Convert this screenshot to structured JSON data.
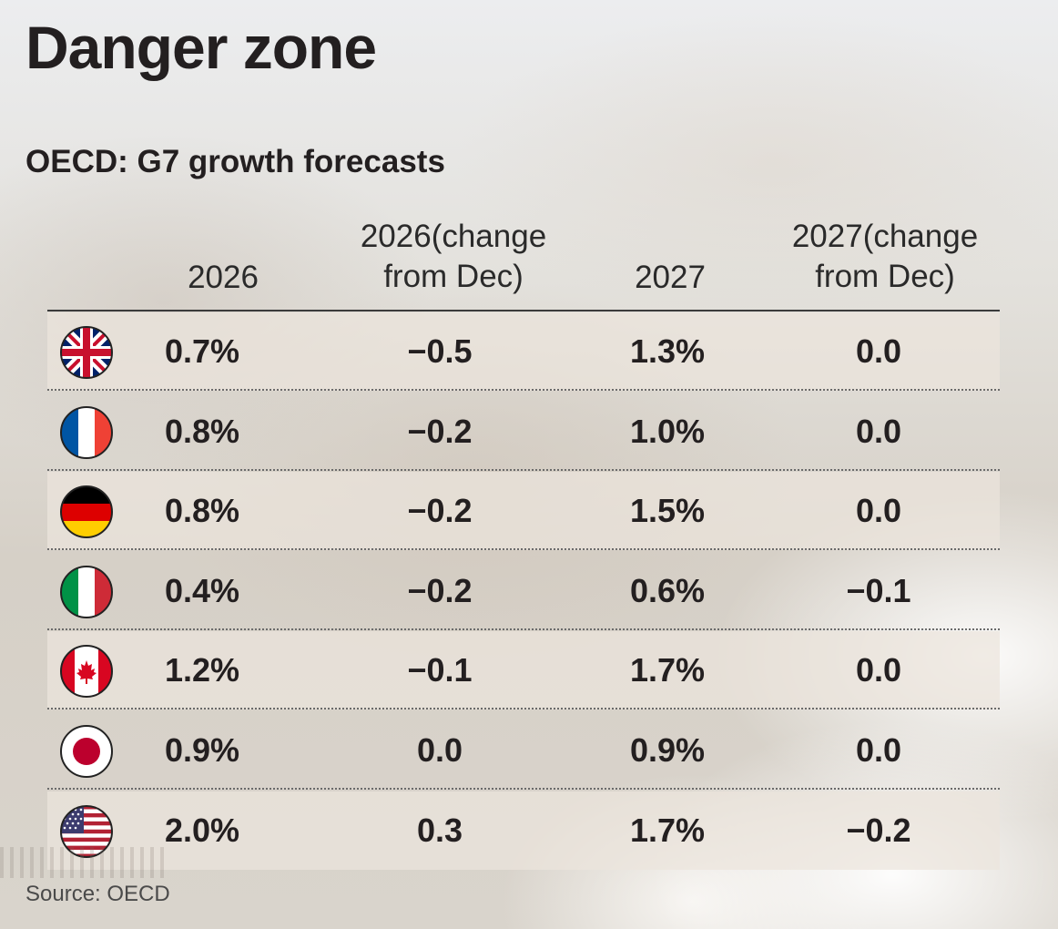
{
  "title": "Danger zone",
  "subtitle": "OECD: G7 growth forecasts",
  "source": "Source: OECD",
  "chart_data": {
    "type": "table",
    "title": "Danger zone",
    "subtitle": "OECD: G7 growth forecasts",
    "columns": [
      {
        "line1": "2026",
        "line2": ""
      },
      {
        "line1": "2026(change",
        "line2": "from Dec)"
      },
      {
        "line1": "2027",
        "line2": ""
      },
      {
        "line1": "2027(change",
        "line2": "from Dec)"
      }
    ],
    "rows": [
      {
        "country": "United Kingdom",
        "flag": "uk-flag-icon",
        "values": [
          "0.7%",
          "−0.5",
          "1.3%",
          "0.0"
        ]
      },
      {
        "country": "France",
        "flag": "france-flag-icon",
        "values": [
          "0.8%",
          "−0.2",
          "1.0%",
          "0.0"
        ]
      },
      {
        "country": "Germany",
        "flag": "germany-flag-icon",
        "values": [
          "0.8%",
          "−0.2",
          "1.5%",
          "0.0"
        ]
      },
      {
        "country": "Italy",
        "flag": "italy-flag-icon",
        "values": [
          "0.4%",
          "−0.2",
          "0.6%",
          "−0.1"
        ]
      },
      {
        "country": "Canada",
        "flag": "canada-flag-icon",
        "values": [
          "1.2%",
          "−0.1",
          "1.7%",
          "0.0"
        ]
      },
      {
        "country": "Japan",
        "flag": "japan-flag-icon",
        "values": [
          "0.9%",
          "0.0",
          "0.9%",
          "0.0"
        ]
      },
      {
        "country": "United States",
        "flag": "usa-flag-icon",
        "values": [
          "2.0%",
          "0.3",
          "1.7%",
          "−0.2"
        ]
      }
    ]
  }
}
